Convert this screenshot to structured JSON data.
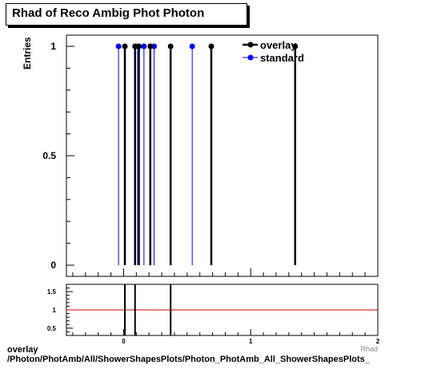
{
  "title": "Rhad of Reco Ambig Phot Photon",
  "ylabel": "Entries",
  "xlabel_partial": "Rhad",
  "footer": {
    "line1": "overlay",
    "line2": "/Photon/PhotAmb/All/ShowerShapesPlots/Photon_PhotAmb_All_ShowerShapesPlots_"
  },
  "colors": {
    "overlay": "#000000",
    "standard": "#0000ff",
    "ratio_line": "#cc0000"
  },
  "chart_data": [
    {
      "type": "scatter",
      "panel": "main",
      "xlim": [
        -0.45,
        2.0
      ],
      "ylim": [
        0,
        1.05
      ],
      "yticks": [
        {
          "v": 0,
          "label": "0"
        },
        {
          "v": 0.5,
          "label": "0.5"
        },
        {
          "v": 1,
          "label": "1"
        }
      ],
      "legend": {
        "placement": "top-right",
        "entries": [
          "overlay",
          "standard"
        ]
      },
      "series": [
        {
          "name": "overlay",
          "color": "#000000",
          "x": [
            0.01,
            0.09,
            0.12,
            0.21,
            0.37,
            0.69,
            1.35
          ],
          "y": [
            1,
            1,
            1,
            1,
            1,
            1,
            1
          ]
        },
        {
          "name": "standard",
          "color": "#0000ff",
          "x": [
            -0.04,
            0.11,
            0.16,
            0.24,
            0.54
          ],
          "y": [
            1,
            1,
            1,
            1,
            1
          ]
        }
      ]
    },
    {
      "type": "scatter",
      "panel": "ratio",
      "xlim": [
        -0.45,
        2.0
      ],
      "ylim": [
        0.3,
        1.7
      ],
      "xticks": [
        {
          "v": 0,
          "label": "0"
        },
        {
          "v": 1,
          "label": "1"
        },
        {
          "v": 2,
          "label": "2"
        }
      ],
      "yticks": [
        {
          "v": 0.5,
          "label": "0.5"
        },
        {
          "v": 1,
          "label": "1"
        },
        {
          "v": 1.5,
          "label": "1.5"
        }
      ],
      "reference_line": 1,
      "series": [
        {
          "name": "ratio",
          "color": "#000000",
          "x": [
            0.01,
            0.09,
            0.37
          ],
          "y": [
            1,
            1,
            1
          ]
        }
      ]
    }
  ]
}
